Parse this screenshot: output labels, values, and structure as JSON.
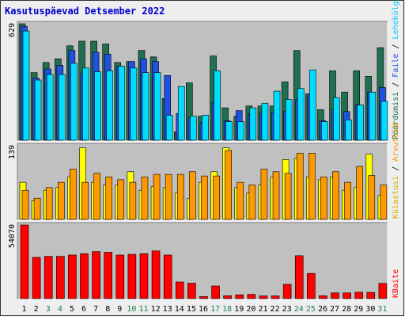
{
  "title": "Kasutuspäevad Detsember 2022",
  "colors": {
    "background": "#eeeeee",
    "frame": "#333333",
    "plot_bg": "#c0c0c0",
    "title": "#0000cc",
    "tick_weekday": "#000000",
    "tick_weekend": "#208050",
    "pageviews": "#207050",
    "files": "#2050e0",
    "hits": "#00ddff",
    "visits": "#ff9900",
    "sites": "#ffff00",
    "kbytes": "#ff0000",
    "legend_sep": "#000000"
  },
  "legend": {
    "top": [
      {
        "label": "Pöördumisi",
        "color": "#207050"
      },
      {
        "label": "Faile",
        "color": "#2050e0"
      },
      {
        "label": "Lehekülgi",
        "color": "#00ccff"
      }
    ],
    "middle": [
      {
        "label": "Külastusi",
        "color": "#ddaa00"
      },
      {
        "label": "Arvuteid",
        "color": "#ff9900"
      }
    ],
    "bottom": [
      {
        "label": "KBaite",
        "color": "#ff0000"
      }
    ]
  },
  "chart_data": [
    {
      "type": "bar",
      "axis_max_label": "629",
      "ylim": [
        0,
        629
      ],
      "categories": [
        "1",
        "2",
        "3",
        "4",
        "5",
        "6",
        "7",
        "8",
        "9",
        "10",
        "11",
        "12",
        "13",
        "14",
        "15",
        "16",
        "17",
        "18",
        "19",
        "20",
        "21",
        "22",
        "23",
        "24",
        "25",
        "26",
        "27",
        "28",
        "29",
        "30",
        "31"
      ],
      "weekend": [
        3,
        4,
        10,
        11,
        17,
        18,
        24,
        25,
        31
      ],
      "series": [
        {
          "name": "Pöördumisi",
          "values": [
            629,
            365,
            420,
            440,
            510,
            535,
            535,
            520,
            420,
            425,
            485,
            450,
            225,
            45,
            310,
            130,
            455,
            175,
            130,
            185,
            185,
            185,
            315,
            485,
            250,
            165,
            375,
            260,
            375,
            345,
            500
          ]
        },
        {
          "name": "Faile",
          "values": [
            615,
            335,
            385,
            405,
            485,
            360,
            475,
            465,
            400,
            425,
            440,
            425,
            350,
            145,
            120,
            95,
            205,
            105,
            160,
            140,
            145,
            150,
            155,
            220,
            250,
            105,
            165,
            155,
            190,
            260,
            285
          ]
        },
        {
          "name": "Lehekülgi",
          "values": [
            590,
            325,
            355,
            355,
            415,
            390,
            370,
            375,
            400,
            390,
            365,
            365,
            135,
            290,
            130,
            135,
            375,
            100,
            100,
            175,
            200,
            265,
            220,
            280,
            380,
            100,
            230,
            110,
            190,
            260,
            210
          ]
        }
      ]
    },
    {
      "type": "bar",
      "axis_max_label": "139",
      "ylim": [
        0,
        139
      ],
      "categories": [
        "1",
        "2",
        "3",
        "4",
        "5",
        "6",
        "7",
        "8",
        "9",
        "10",
        "11",
        "12",
        "13",
        "14",
        "15",
        "16",
        "17",
        "18",
        "19",
        "20",
        "21",
        "22",
        "23",
        "24",
        "25",
        "26",
        "27",
        "28",
        "29",
        "30",
        "31"
      ],
      "weekend": [
        3,
        4,
        10,
        11,
        17,
        18,
        24,
        25,
        31
      ],
      "series": [
        {
          "name": "Külastusi",
          "values": [
            70,
            35,
            55,
            60,
            80,
            135,
            70,
            65,
            65,
            90,
            55,
            62,
            60,
            50,
            40,
            70,
            90,
            135,
            60,
            50,
            65,
            80,
            113,
            115,
            80,
            75,
            80,
            55,
            60,
            123,
            45
          ]
        },
        {
          "name": "Arvuteid",
          "values": [
            55,
            40,
            60,
            70,
            95,
            70,
            87,
            80,
            75,
            70,
            80,
            85,
            85,
            85,
            90,
            82,
            82,
            130,
            70,
            65,
            95,
            90,
            87,
            125,
            125,
            80,
            90,
            70,
            100,
            83,
            65
          ]
        }
      ]
    },
    {
      "type": "bar",
      "axis_max_label": "54070",
      "ylim": [
        0,
        54070
      ],
      "categories": [
        "1",
        "2",
        "3",
        "4",
        "5",
        "6",
        "7",
        "8",
        "9",
        "10",
        "11",
        "12",
        "13",
        "14",
        "15",
        "16",
        "17",
        "18",
        "19",
        "20",
        "21",
        "22",
        "23",
        "24",
        "25",
        "26",
        "27",
        "28",
        "29",
        "30",
        "31"
      ],
      "weekend": [
        3,
        4,
        10,
        11,
        17,
        18,
        24,
        25,
        31
      ],
      "series": [
        {
          "name": "KBaite",
          "values": [
            54070,
            30300,
            31000,
            31000,
            32000,
            33000,
            34500,
            34000,
            32000,
            32500,
            33000,
            35000,
            32000,
            12200,
            11300,
            1500,
            9300,
            2100,
            2800,
            3100,
            2000,
            2000,
            10500,
            31500,
            18500,
            2100,
            4200,
            4200,
            4700,
            4600,
            11200
          ]
        }
      ]
    }
  ]
}
